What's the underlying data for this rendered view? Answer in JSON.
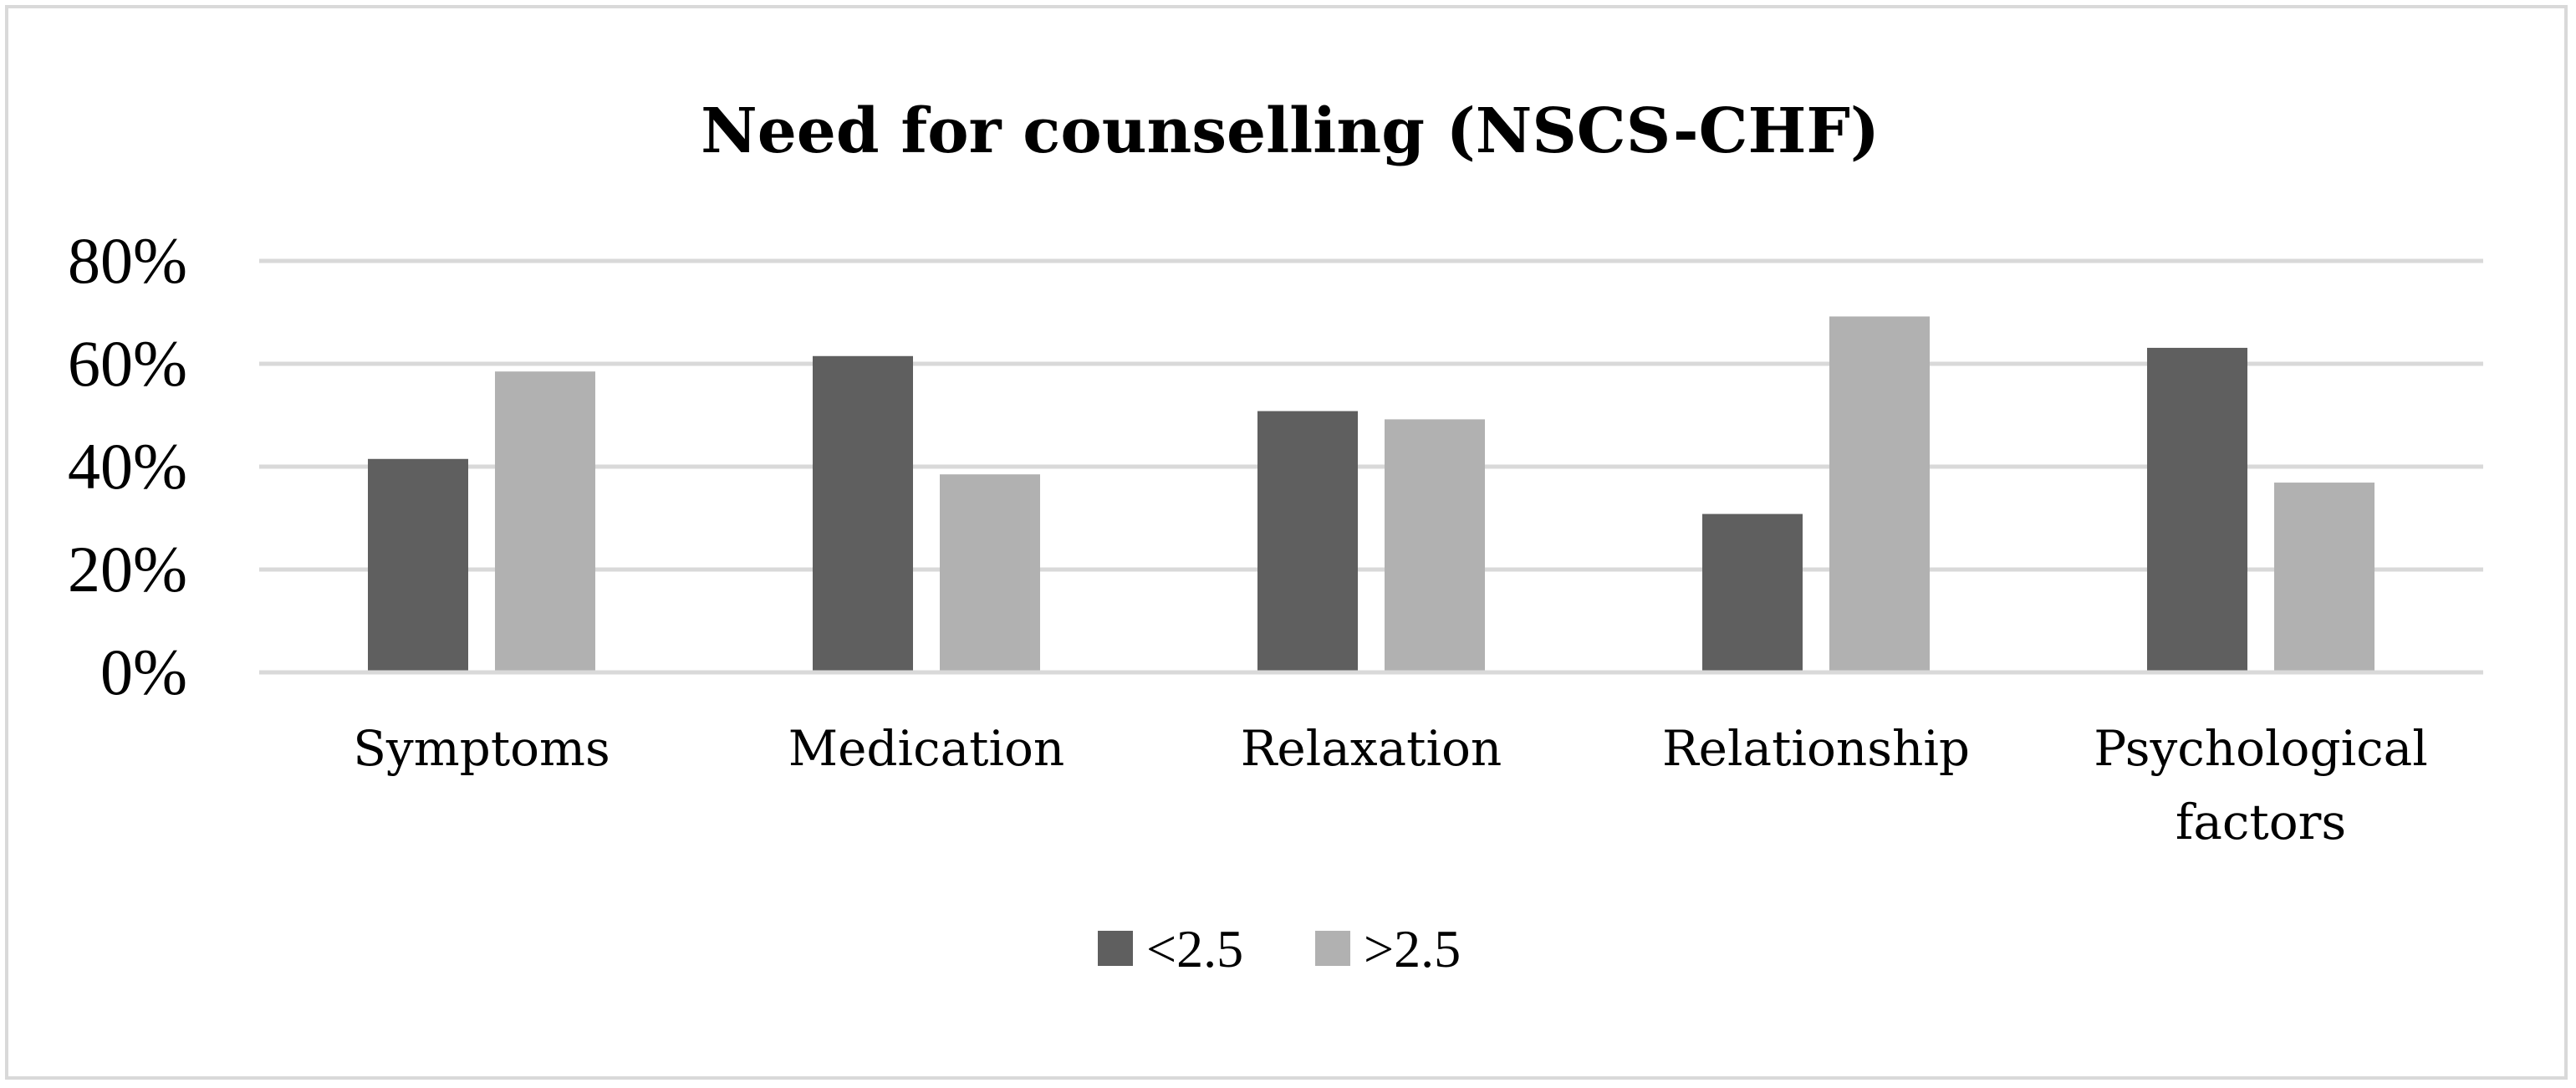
{
  "chart_data": {
    "type": "bar",
    "title": "Need for counselling (NSCS-CHF)",
    "xlabel": "",
    "ylabel": "",
    "ylim": [
      0,
      80
    ],
    "y_ticks": [
      "0%",
      "20%",
      "40%",
      "60%",
      "80%"
    ],
    "y_tick_values": [
      0,
      20,
      40,
      60,
      80
    ],
    "categories": [
      "Symptoms",
      "Medication",
      "Relaxation",
      "Relationship",
      "Psychological factors"
    ],
    "category_lines": [
      [
        "Symptoms"
      ],
      [
        "Medication"
      ],
      [
        "Relaxation"
      ],
      [
        "Relationship"
      ],
      [
        "Psychological",
        "factors"
      ]
    ],
    "series": [
      {
        "name": "<2.5",
        "color": "#5f5f5f",
        "values": [
          41.5,
          61.5,
          50.8,
          30.8,
          63.1
        ]
      },
      {
        "name": ">2.5",
        "color": "#b1b1b1",
        "values": [
          58.5,
          38.5,
          49.2,
          69.2,
          36.9
        ]
      }
    ],
    "grid": true,
    "legend_position": "bottom-center"
  },
  "colors": {
    "gridline": "#d9d9d9",
    "frame": "#d9d9d9"
  }
}
